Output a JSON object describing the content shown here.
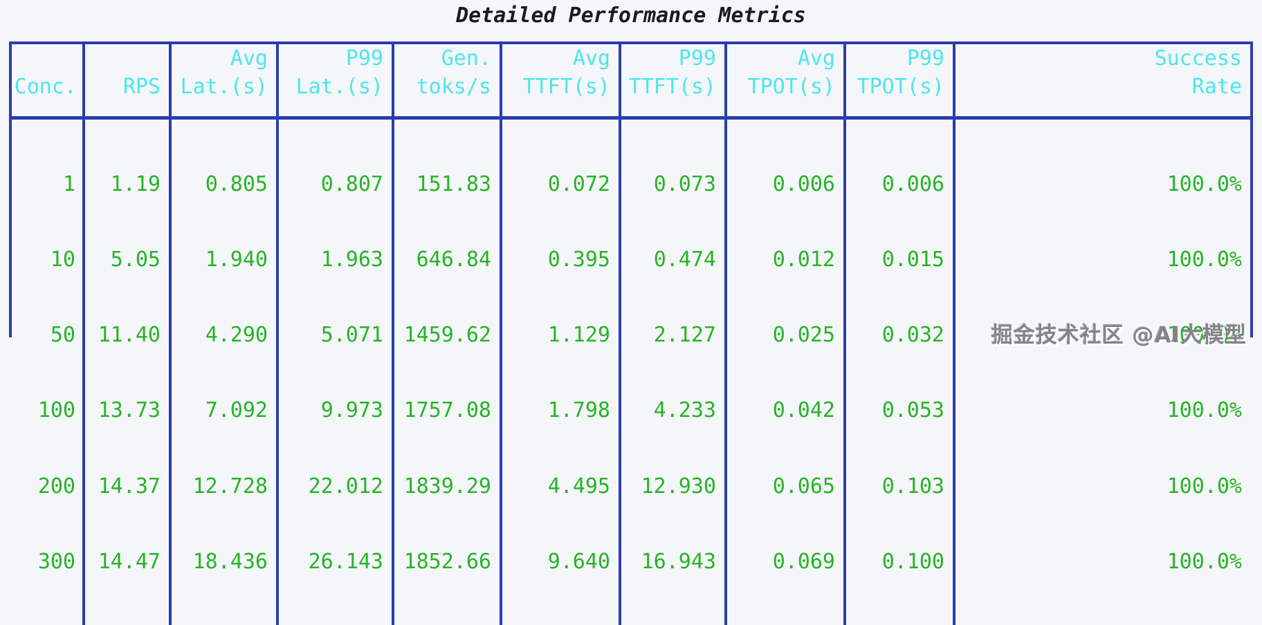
{
  "page": {
    "title": "Detailed Performance Metrics",
    "watermark": "掘金技术社区 @AI大模型"
  },
  "colors": {
    "border_blue": "#2c3cae",
    "header_cyan": "#4be7ee",
    "value_green": "#26b426",
    "title_text": "#1b1b1d",
    "background": "#f5f6f9"
  },
  "table": {
    "headers": [
      [
        "Conc."
      ],
      [
        "RPS"
      ],
      [
        "Avg",
        "Lat.(s)"
      ],
      [
        "P99",
        "Lat.(s)"
      ],
      [
        "Gen.",
        "toks/s"
      ],
      [
        "Avg",
        "TTFT(s)"
      ],
      [
        "P99",
        "TTFT(s)"
      ],
      [
        "Avg",
        "TPOT(s)"
      ],
      [
        "P99",
        "TPOT(s)"
      ],
      [
        "Success",
        "Rate"
      ]
    ],
    "body_columns": [
      [
        "1",
        "10",
        "50",
        "100",
        "200",
        "300"
      ],
      [
        "1.19",
        "5.05",
        "11.40",
        "13.73",
        "14.37",
        "14.47"
      ],
      [
        "0.805",
        "1.940",
        "4.290",
        "7.092",
        "12.728",
        "18.436"
      ],
      [
        "0.807",
        "1.963",
        "5.071",
        "9.973",
        "22.012",
        "26.143"
      ],
      [
        "151.83",
        "646.84",
        "1459.62",
        "1757.08",
        "1839.29",
        "1852.66"
      ],
      [
        "0.072",
        "0.395",
        "1.129",
        "1.798",
        "4.495",
        "9.640"
      ],
      [
        "0.073",
        "0.474",
        "2.127",
        "4.233",
        "12.930",
        "16.943"
      ],
      [
        "0.006",
        "0.012",
        "0.025",
        "0.042",
        "0.065",
        "0.069"
      ],
      [
        "0.006",
        "0.015",
        "0.032",
        "0.053",
        "0.103",
        "0.100"
      ],
      [
        "100.0%",
        "100.0%",
        "100.0%",
        "100.0%",
        "100.0%",
        "100.0%"
      ]
    ]
  },
  "chart_data": {
    "type": "table",
    "title": "Detailed Performance Metrics",
    "columns": [
      "Conc.",
      "RPS",
      "Avg Lat.(s)",
      "P99 Lat.(s)",
      "Gen. toks/s",
      "Avg TTFT(s)",
      "P99 TTFT(s)",
      "Avg TPOT(s)",
      "P99 TPOT(s)",
      "Success Rate"
    ],
    "rows": [
      [
        1,
        1.19,
        0.805,
        0.807,
        151.83,
        0.072,
        0.073,
        0.006,
        0.006,
        "100.0%"
      ],
      [
        10,
        5.05,
        1.94,
        1.963,
        646.84,
        0.395,
        0.474,
        0.012,
        0.015,
        "100.0%"
      ],
      [
        50,
        11.4,
        4.29,
        5.071,
        1459.62,
        1.129,
        2.127,
        0.025,
        0.032,
        "100.0%"
      ],
      [
        100,
        13.73,
        7.092,
        9.973,
        1757.08,
        1.798,
        4.233,
        0.042,
        0.053,
        "100.0%"
      ],
      [
        200,
        14.37,
        12.728,
        22.012,
        1839.29,
        4.495,
        12.93,
        0.065,
        0.103,
        "100.0%"
      ],
      [
        300,
        14.47,
        18.436,
        26.143,
        1852.66,
        9.64,
        16.943,
        0.069,
        0.1,
        "100.0%"
      ]
    ],
    "layout": {
      "header_text_color": "#4be7ee",
      "value_text_color": "#26b426",
      "grid_color": "#2c3cae",
      "header_align": "right",
      "value_align": "right"
    }
  }
}
